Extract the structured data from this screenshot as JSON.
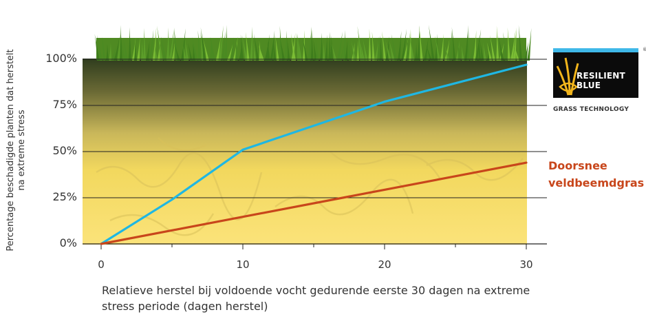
{
  "chart_data": {
    "type": "line",
    "xlabel": "Relatieve herstel bij voldoende vocht gedurende eerste 30 dagen na extreme stress periode (dagen herstel)",
    "ylabel": "Percentage beschadigde planten dat herstelt na extreme stress",
    "x_ticks": [
      "0",
      "10",
      "20",
      "30"
    ],
    "y_ticks": [
      "0%",
      "25%",
      "50%",
      "75%",
      "100%"
    ],
    "xlim": [
      0,
      30
    ],
    "ylim": [
      0,
      100
    ],
    "grid": "horizontal",
    "series": [
      {
        "name": "Resilient Blue",
        "color": "#1fb7e3",
        "x": [
          0,
          5,
          10,
          15,
          20,
          30
        ],
        "y": [
          0,
          24,
          51,
          64,
          77,
          97
        ]
      },
      {
        "name": "Doorsnee veldbeemdgras",
        "color": "#c8461b",
        "x": [
          0,
          30
        ],
        "y": [
          0,
          44
        ]
      }
    ]
  },
  "legend": {
    "series2_line1": "Doorsnee",
    "series2_line2": "veldbeemdgras"
  },
  "logo": {
    "line1": "RESILIENT",
    "line2": "BLUE",
    "tagline": "GRASS TECHNOLOGY",
    "registered": "®"
  }
}
